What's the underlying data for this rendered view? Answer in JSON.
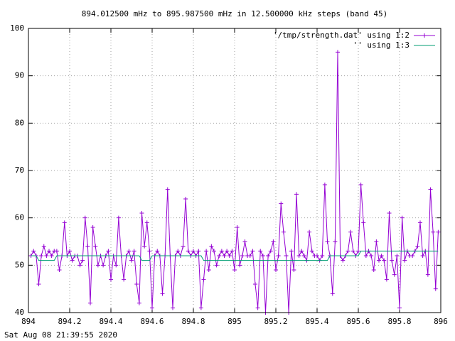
{
  "chart_data": {
    "type": "line",
    "title": "894.012500 mHz to 895.987500 mHz in 12.500000 kHz steps (band 45)",
    "timestamp": "Sat Aug 08 21:39:55 2020",
    "x": [
      894.0125,
      894.025,
      894.0375,
      894.05,
      894.0625,
      894.075,
      894.0875,
      894.1,
      894.1125,
      894.125,
      894.1375,
      894.15,
      894.1625,
      894.175,
      894.1875,
      894.2,
      894.2125,
      894.225,
      894.2375,
      894.25,
      894.2625,
      894.275,
      894.2875,
      894.3,
      894.3125,
      894.325,
      894.3375,
      894.35,
      894.3625,
      894.375,
      894.3875,
      894.4,
      894.4125,
      894.425,
      894.4375,
      894.45,
      894.4625,
      894.475,
      894.4875,
      894.5,
      894.5125,
      894.525,
      894.5375,
      894.55,
      894.5625,
      894.575,
      894.5875,
      894.6,
      894.6125,
      894.625,
      894.6375,
      894.65,
      894.6625,
      894.675,
      894.6875,
      894.7,
      894.7125,
      894.725,
      894.7375,
      894.75,
      894.7625,
      894.775,
      894.7875,
      894.8,
      894.8125,
      894.825,
      894.8375,
      894.85,
      894.8625,
      894.875,
      894.8875,
      894.9,
      894.9125,
      894.925,
      894.9375,
      894.95,
      894.9625,
      894.975,
      894.9875,
      895,
      895.0125,
      895.025,
      895.0375,
      895.05,
      895.0625,
      895.075,
      895.0875,
      895.1,
      895.1125,
      895.125,
      895.1375,
      895.15,
      895.1625,
      895.175,
      895.1875,
      895.2,
      895.2125,
      895.225,
      895.2375,
      895.25,
      895.2625,
      895.275,
      895.2875,
      895.3,
      895.3125,
      895.325,
      895.3375,
      895.35,
      895.3625,
      895.375,
      895.3875,
      895.4,
      895.4125,
      895.425,
      895.4375,
      895.45,
      895.4625,
      895.475,
      895.4875,
      895.5,
      895.5125,
      895.525,
      895.5375,
      895.55,
      895.5625,
      895.575,
      895.5875,
      895.6,
      895.6125,
      895.625,
      895.6375,
      895.65,
      895.6625,
      895.675,
      895.6875,
      895.7,
      895.7125,
      895.725,
      895.7375,
      895.75,
      895.7625,
      895.775,
      895.7875,
      895.8,
      895.8125,
      895.825,
      895.8375,
      895.85,
      895.8625,
      895.875,
      895.8875,
      895.9,
      895.9125,
      895.925,
      895.9375,
      895.95,
      895.9625,
      895.975,
      895.9875
    ],
    "series": [
      {
        "name": "'/tmp/strength.dat' using 1:2",
        "color": "#9400d3",
        "marker": "+",
        "values": [
          52,
          53,
          52,
          46,
          52,
          54,
          52,
          53,
          52,
          53,
          53,
          49,
          52,
          59,
          52,
          53,
          51,
          52,
          52,
          50,
          51,
          60,
          54,
          42,
          58,
          54,
          50,
          52,
          50,
          52,
          53,
          47,
          52,
          50,
          60,
          52,
          47,
          52,
          53,
          51,
          53,
          46,
          42,
          61,
          54,
          59,
          53,
          41,
          52,
          53,
          52,
          44,
          52,
          66,
          52,
          41,
          52,
          53,
          52,
          54,
          64,
          53,
          52,
          53,
          52,
          53,
          41,
          47,
          53,
          49,
          54,
          53,
          50,
          52,
          53,
          52,
          53,
          52,
          53,
          49,
          58,
          50,
          52,
          55,
          52,
          52,
          53,
          46,
          41,
          53,
          52,
          40,
          52,
          53,
          55,
          49,
          52,
          63,
          57,
          52,
          40,
          53,
          49,
          65,
          52,
          53,
          52,
          51,
          57,
          53,
          52,
          52,
          51,
          52,
          67,
          55,
          52,
          44,
          55,
          95,
          52,
          51,
          52,
          53,
          57,
          53,
          52,
          53,
          67,
          59,
          52,
          53,
          52,
          49,
          55,
          51,
          52,
          51,
          47,
          61,
          51,
          48,
          52,
          41,
          60,
          51,
          53,
          52,
          52,
          53,
          54,
          59,
          52,
          53,
          48,
          66,
          57,
          45,
          57
        ]
      },
      {
        "name": "'' using 1:3",
        "color": "#009e73",
        "values": [
          52,
          52,
          52,
          51,
          51,
          51,
          51,
          51,
          51,
          51,
          52,
          52,
          52,
          52,
          52,
          52,
          52,
          52,
          52,
          52,
          52,
          52,
          52,
          52,
          52,
          52,
          52,
          52,
          52,
          52,
          52,
          52,
          52,
          52,
          52,
          52,
          52,
          52,
          52,
          52,
          52,
          52,
          52,
          51,
          51,
          51,
          51,
          52,
          52,
          52,
          52,
          52,
          52,
          52,
          52,
          52,
          52,
          52,
          52,
          52,
          52,
          52,
          52,
          52,
          52,
          52,
          52,
          51,
          51,
          51,
          51,
          51,
          51,
          51,
          51,
          51,
          51,
          51,
          51,
          51,
          51,
          51,
          51,
          51,
          51,
          51,
          51,
          51,
          51,
          51,
          51,
          51,
          51,
          51,
          51,
          51,
          51,
          51,
          51,
          51,
          51,
          51,
          51,
          51,
          51,
          51,
          51,
          51,
          51,
          51,
          51,
          51,
          51,
          51,
          51,
          51,
          52,
          52,
          52,
          52,
          52,
          52,
          52,
          52,
          52,
          52,
          52,
          52,
          53,
          53,
          53,
          53,
          53,
          53,
          53,
          53,
          53,
          53,
          53,
          53,
          53,
          53,
          53,
          53,
          53,
          53,
          53,
          53,
          53,
          53,
          53,
          53,
          53,
          53,
          53,
          53,
          53,
          53,
          53
        ]
      }
    ],
    "xlim": [
      894,
      896
    ],
    "xticks": [
      894,
      894.2,
      894.4,
      894.6,
      894.8,
      895,
      895.2,
      895.4,
      895.6,
      895.8,
      896
    ],
    "ylim": [
      40,
      100
    ],
    "yticks": [
      40,
      50,
      60,
      70,
      80,
      90,
      100
    ],
    "grid": true,
    "legend": "top-right"
  }
}
